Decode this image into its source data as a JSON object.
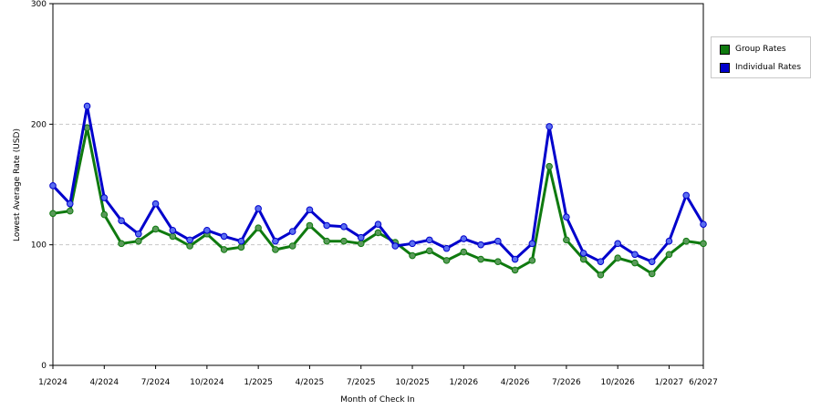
{
  "chart_data": {
    "type": "line",
    "ylabel": "Lowest Average Rate (USD)",
    "xlabel": "Month of Check In",
    "ylim": [
      0,
      300
    ],
    "y_ticks": [
      "0",
      "100",
      "200",
      "300"
    ],
    "x_ticks": [
      "1/2024",
      "4/2024",
      "7/2024",
      "10/2024",
      "1/2025",
      "4/2025",
      "7/2025",
      "10/2025",
      "1/2026",
      "4/2026",
      "7/2026",
      "10/2026",
      "1/2027",
      "6/2027"
    ],
    "x_tick_index": [
      0,
      3,
      6,
      9,
      12,
      15,
      18,
      21,
      24,
      27,
      30,
      33,
      36,
      38
    ],
    "grid": "horizontal dashed",
    "legend_position": "right",
    "series": [
      {
        "name": "Group Rates",
        "color": "#0f7a0f",
        "values": [
          126,
          128,
          197,
          125,
          101,
          103,
          113,
          107,
          99,
          109,
          96,
          98,
          114,
          96,
          99,
          116,
          103,
          103,
          101,
          110,
          102,
          91,
          95,
          87,
          94,
          88,
          86,
          79,
          87,
          165,
          104,
          88,
          75,
          89,
          85,
          76,
          92,
          103,
          101
        ]
      },
      {
        "name": "Individual Rates",
        "color": "#0000cc",
        "values": [
          149,
          134,
          215,
          139,
          120,
          109,
          134,
          112,
          104,
          112,
          107,
          103,
          130,
          103,
          111,
          129,
          116,
          115,
          106,
          117,
          99,
          101,
          104,
          97,
          105,
          100,
          103,
          88,
          101,
          198,
          123,
          93,
          86,
          101,
          92,
          86,
          103,
          141,
          117
        ]
      }
    ]
  }
}
